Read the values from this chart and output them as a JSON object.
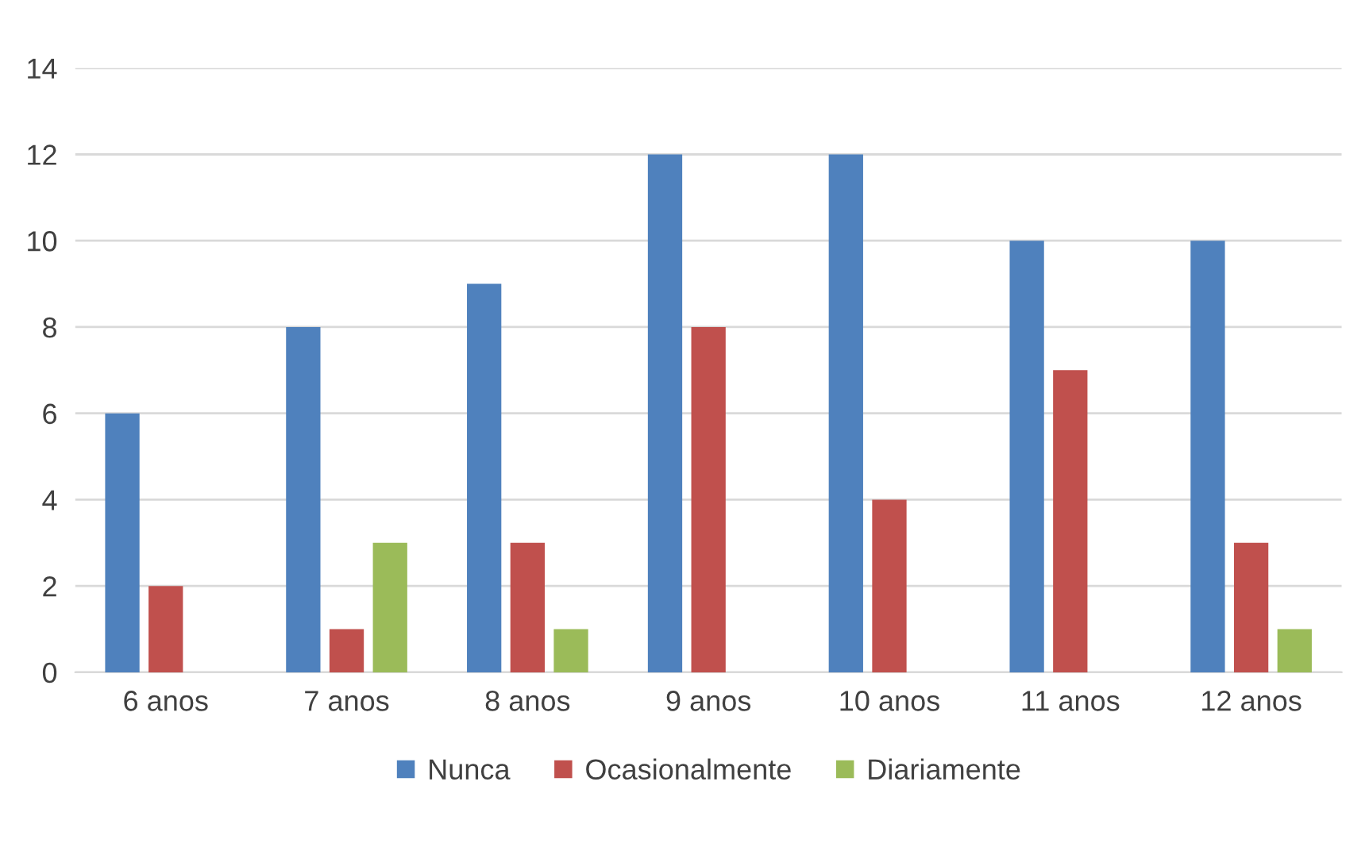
{
  "chart_data": {
    "type": "bar",
    "categories": [
      "6 anos",
      "7 anos",
      "8 anos",
      "9 anos",
      "10 anos",
      "11 anos",
      "12 anos"
    ],
    "series": [
      {
        "name": "Nunca",
        "color": "#4f81bd",
        "values": [
          6,
          8,
          9,
          12,
          12,
          10,
          10
        ]
      },
      {
        "name": "Ocasionalmente",
        "color": "#c0504d",
        "values": [
          2,
          1,
          3,
          8,
          4,
          7,
          3
        ]
      },
      {
        "name": "Diariamente",
        "color": "#9bbb59",
        "values": [
          0,
          3,
          1,
          0,
          0,
          0,
          1
        ]
      }
    ],
    "ylim": [
      0,
      14
    ],
    "yticks": [
      0,
      2,
      4,
      6,
      8,
      10,
      12,
      14
    ],
    "grid": "y",
    "legend": "bottom"
  }
}
